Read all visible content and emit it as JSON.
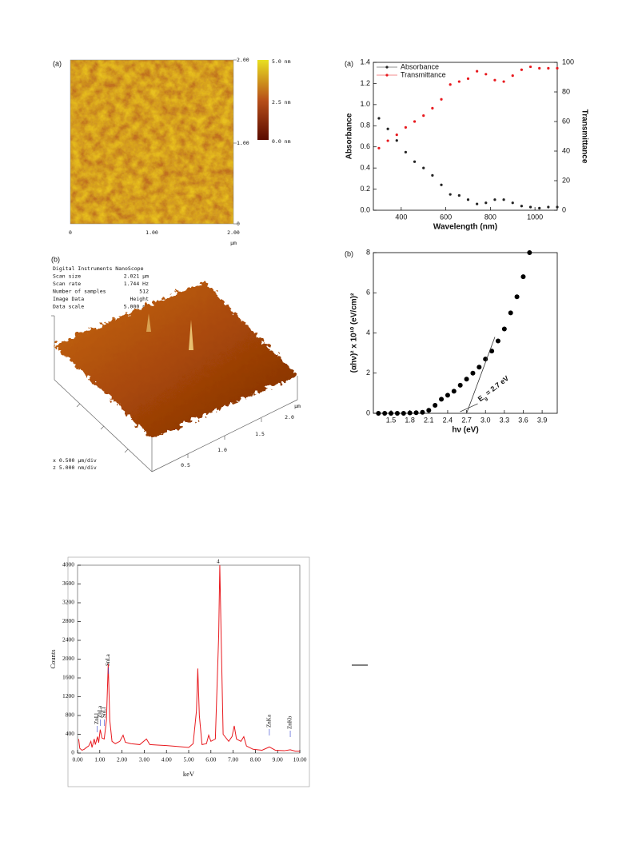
{
  "afm_2d": {
    "label": "(a)",
    "x_ticks": [
      "0",
      "1.00",
      "2.00"
    ],
    "x_unit": "µm",
    "y_ticks": [
      "2.00",
      "1.00",
      "0"
    ],
    "colorbar": [
      "5.0 nm",
      "2.5 nm",
      "0.0 nm"
    ]
  },
  "afm_3d": {
    "label": "(b)",
    "info": [
      [
        "Digital Instruments NanoScope"
      ],
      [
        "Scan size",
        "2.021 µm"
      ],
      [
        "Scan rate",
        "1.744 Hz"
      ],
      [
        "Number of samples",
        "512"
      ],
      [
        "Image Data",
        "Height"
      ],
      [
        "Data scale",
        "5.000 nm"
      ]
    ],
    "axis_ticks": [
      "0.5",
      "1.0",
      "1.5",
      "2.0"
    ],
    "axis_unit": "µm",
    "scale": [
      "x  0.500 µm/div",
      "z  5.000 nm/div"
    ]
  },
  "chart_data": [
    {
      "type": "scatter",
      "panel_label": "(a)",
      "x_label": "Wavelength (nm)",
      "y_label": "Absorbance",
      "y2_label": "Transmittance",
      "legend": "upper left",
      "x": [
        300,
        340,
        380,
        420,
        460,
        500,
        540,
        580,
        620,
        660,
        700,
        740,
        780,
        820,
        860,
        900,
        940,
        980,
        1020,
        1060,
        1100
      ],
      "series": [
        {
          "name": "Absorbance",
          "color": "#222222",
          "values": [
            0.87,
            0.77,
            0.66,
            0.55,
            0.46,
            0.4,
            0.33,
            0.24,
            0.15,
            0.14,
            0.1,
            0.06,
            0.07,
            0.1,
            0.1,
            0.07,
            0.04,
            0.03,
            0.02,
            0.03,
            0.03
          ]
        },
        {
          "name": "Transmittance",
          "color": "#e8191e",
          "axis": "y2",
          "values": [
            42,
            47,
            51,
            56,
            60,
            64,
            69,
            75,
            85,
            87,
            89,
            94,
            92,
            88,
            87,
            91,
            95,
            97,
            96,
            96,
            96
          ]
        }
      ],
      "xlim": [
        275,
        1100
      ],
      "xticks": [
        400,
        600,
        800,
        1000
      ],
      "ylim": [
        0,
        1.4
      ],
      "yticks": [
        {
          "value": 0,
          "label": "0.0"
        },
        0.2,
        0.4,
        0.6,
        0.8,
        {
          "value": 1,
          "label": "1.0"
        },
        1.2,
        1.4
      ],
      "y2lim": [
        0,
        100
      ],
      "y2ticks": [
        0,
        20,
        40,
        60,
        80,
        100
      ]
    },
    {
      "type": "scatter",
      "panel_label": "(b)",
      "x_label": "hν (eV)",
      "y_label": "(αhν)² x 10¹⁰ (eV/cm)²",
      "color": "#000000",
      "x": [
        1.3,
        1.4,
        1.5,
        1.6,
        1.7,
        1.8,
        1.9,
        2.0,
        2.1,
        2.2,
        2.3,
        2.4,
        2.5,
        2.6,
        2.7,
        2.8,
        2.9,
        3.0,
        3.1,
        3.2,
        3.3,
        3.4,
        3.5,
        3.6,
        3.7
      ],
      "values": [
        0,
        0,
        0,
        0,
        0,
        0.02,
        0.03,
        0.05,
        0.15,
        0.4,
        0.7,
        0.9,
        1.1,
        1.4,
        1.7,
        2.0,
        2.3,
        2.7,
        3.1,
        3.6,
        4.2,
        5.0,
        5.8,
        6.8,
        8.0
      ],
      "fit_line": {
        "x": [
          2.7,
          3.15
        ],
        "y": [
          0,
          3.8
        ]
      },
      "annotation": {
        "main": "E",
        "sub": "g",
        "rest": " = 2.7 eV"
      },
      "xlim": [
        1.22,
        4.14
      ],
      "xticks": [
        1.5,
        1.8,
        2.1,
        2.4,
        2.7,
        {
          "value": 3,
          "label": "3.0"
        },
        3.3,
        3.6,
        3.9
      ],
      "ylim": [
        0,
        8
      ],
      "yticks": [
        0,
        2,
        4,
        6,
        8
      ]
    },
    {
      "type": "line",
      "x_label": "keV",
      "y_label": "Counts",
      "color": "#e8191e",
      "top_label": "4",
      "x": [
        0.05,
        0.1,
        0.2,
        0.3,
        0.4,
        0.5,
        0.6,
        0.65,
        0.75,
        0.8,
        0.9,
        0.95,
        1.02,
        1.1,
        1.2,
        1.3,
        1.38,
        1.45,
        1.55,
        1.7,
        1.9,
        2.05,
        2.15,
        2.4,
        2.8,
        3.1,
        3.25,
        3.6,
        4.0,
        4.5,
        5.0,
        5.2,
        5.35,
        5.41,
        5.48,
        5.6,
        5.8,
        5.9,
        6.0,
        6.2,
        6.35,
        6.4,
        6.46,
        6.55,
        6.8,
        6.95,
        7.05,
        7.15,
        7.35,
        7.48,
        7.6,
        7.9,
        8.3,
        8.63,
        8.9,
        9.3,
        9.57,
        9.8,
        10.0
      ],
      "values": [
        300,
        100,
        60,
        80,
        120,
        150,
        250,
        120,
        300,
        180,
        350,
        220,
        500,
        320,
        300,
        700,
        1900,
        700,
        250,
        200,
        250,
        380,
        230,
        200,
        180,
        300,
        180,
        170,
        160,
        140,
        120,
        200,
        900,
        1800,
        800,
        180,
        200,
        380,
        250,
        300,
        2500,
        4000,
        2500,
        400,
        250,
        350,
        580,
        300,
        250,
        350,
        150,
        80,
        60,
        130,
        60,
        50,
        70,
        40,
        40
      ],
      "peak_labels": [
        {
          "text": "ZnLl",
          "x": 0.88
        },
        {
          "text": "ZnLa",
          "x": 1.02
        },
        {
          "text": "SnLl",
          "x": 1.2
        },
        {
          "text": "SnLa",
          "x": 1.38
        },
        {
          "text": "ZnKa",
          "x": 8.63
        },
        {
          "text": "ZnKb",
          "x": 9.57
        }
      ],
      "xlim": [
        0,
        10
      ],
      "xticks": [
        {
          "value": 0,
          "label": "0.00"
        },
        {
          "value": 1,
          "label": "1.00"
        },
        {
          "value": 2,
          "label": "2.00"
        },
        {
          "value": 3,
          "label": "3.00"
        },
        {
          "value": 4,
          "label": "4.00"
        },
        {
          "value": 5,
          "label": "5.00"
        },
        {
          "value": 6,
          "label": "6.00"
        },
        {
          "value": 7,
          "label": "7.00"
        },
        {
          "value": 8,
          "label": "8.00"
        },
        {
          "value": 9,
          "label": "9.00"
        },
        {
          "value": 10,
          "label": "10.00"
        }
      ],
      "ylim": [
        0,
        4000
      ],
      "yticks": [
        0,
        400,
        800,
        1200,
        1600,
        2000,
        2400,
        2800,
        3200,
        3600,
        4000
      ]
    }
  ]
}
